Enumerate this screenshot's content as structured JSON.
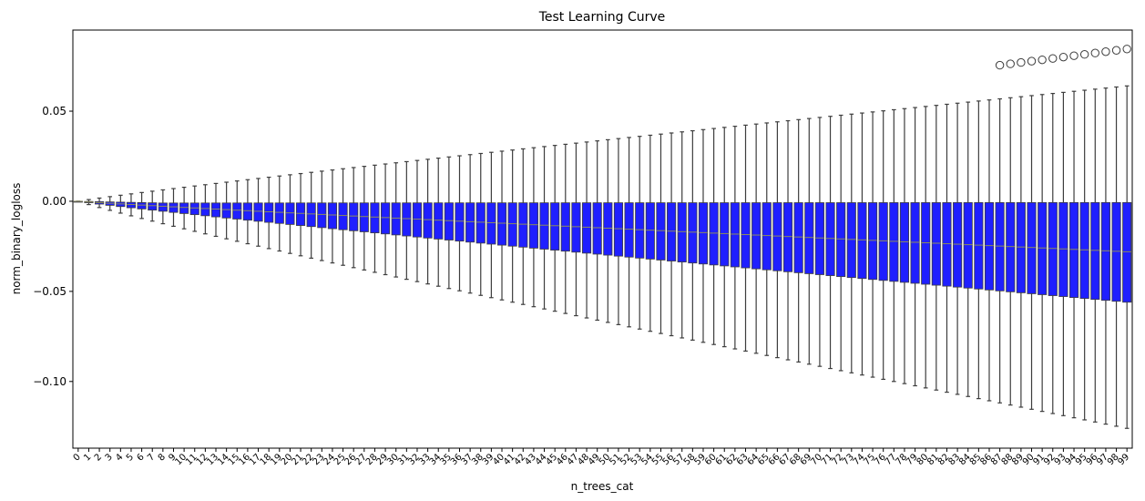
{
  "chart_data": {
    "type": "box",
    "title": "Test Learning Curve",
    "xlabel": "n_trees_cat",
    "ylabel": "norm_binary_logloss",
    "categories": [
      "0",
      "1",
      "2",
      "3",
      "4",
      "5",
      "6",
      "7",
      "8",
      "9",
      "10",
      "11",
      "12",
      "13",
      "14",
      "15",
      "16",
      "17",
      "18",
      "19",
      "20",
      "21",
      "22",
      "23",
      "24",
      "25",
      "26",
      "27",
      "28",
      "29",
      "30",
      "31",
      "32",
      "33",
      "34",
      "35",
      "36",
      "37",
      "38",
      "39",
      "40",
      "41",
      "42",
      "43",
      "44",
      "45",
      "46",
      "47",
      "48",
      "49",
      "50",
      "51",
      "52",
      "53",
      "54",
      "55",
      "56",
      "57",
      "58",
      "59",
      "60",
      "61",
      "62",
      "63",
      "64",
      "65",
      "66",
      "67",
      "68",
      "69",
      "70",
      "71",
      "72",
      "73",
      "74",
      "75",
      "76",
      "77",
      "78",
      "79",
      "80",
      "81",
      "82",
      "83",
      "84",
      "85",
      "86",
      "87",
      "88",
      "89",
      "90",
      "91",
      "92",
      "93",
      "94",
      "95",
      "96",
      "97",
      "98",
      "99"
    ],
    "y_ticks": [
      {
        "value": 0.05,
        "label": "0.05"
      },
      {
        "value": 0.0,
        "label": "0.00"
      },
      {
        "value": -0.05,
        "label": "−0.05"
      },
      {
        "value": -0.1,
        "label": "−0.10"
      }
    ],
    "ylim": [
      -0.137,
      0.095
    ],
    "box_color": "#0000ff",
    "line_color": "#3d3d3d",
    "median_color": "#8c8c5a",
    "summary": {
      "n": 100,
      "whisker_top_at_last": 0.064,
      "whisker_bottom_at_last": -0.126,
      "q3_near": -0.001,
      "q1_at_last": -0.056,
      "median_at_last": -0.028,
      "outliers_from_category": 87,
      "outlier_at_87": 0.0755,
      "outlier_at_99": 0.0845
    },
    "grid": false,
    "legend": "none"
  }
}
